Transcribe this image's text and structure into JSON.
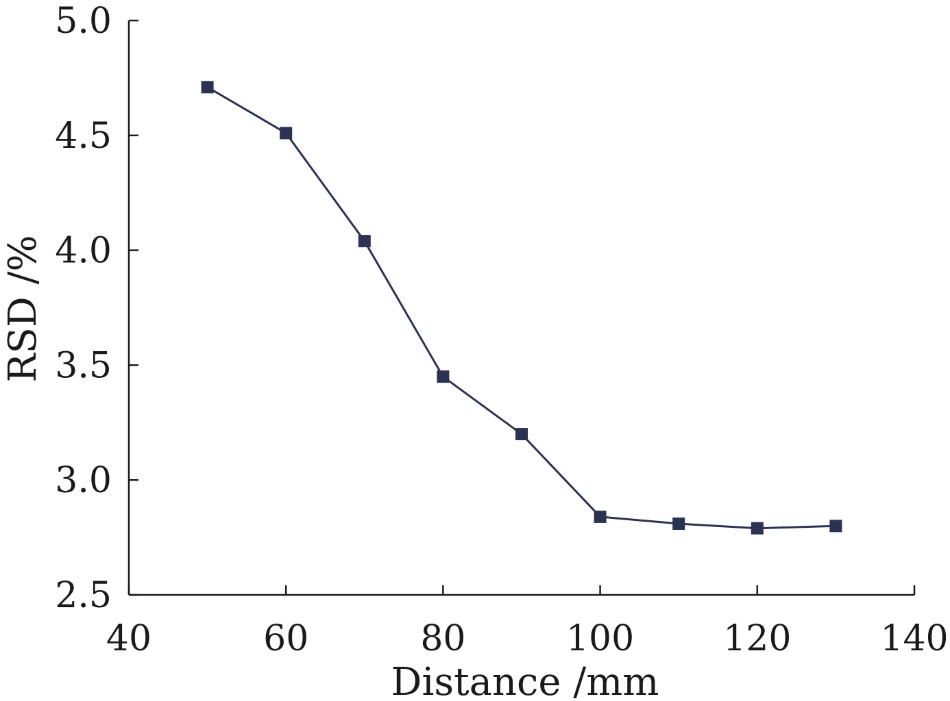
{
  "chart_data": {
    "type": "line",
    "title": "",
    "xlabel": "Distance /mm",
    "ylabel": "RSD /%",
    "xlim": [
      40,
      140
    ],
    "ylim": [
      2.5,
      5.0
    ],
    "x_ticks": [
      40,
      60,
      80,
      100,
      120,
      140
    ],
    "y_ticks": [
      "2.5",
      "3.0",
      "3.5",
      "4.0",
      "4.5",
      "5.0"
    ],
    "grid": false,
    "legend": "none",
    "series": [
      {
        "marker": "square",
        "color": "#2b3252",
        "x": [
          50,
          60,
          70,
          80,
          90,
          100,
          110,
          120,
          130
        ],
        "y": [
          4.71,
          4.51,
          4.04,
          3.45,
          3.2,
          2.84,
          2.81,
          2.79,
          2.8
        ]
      }
    ]
  }
}
